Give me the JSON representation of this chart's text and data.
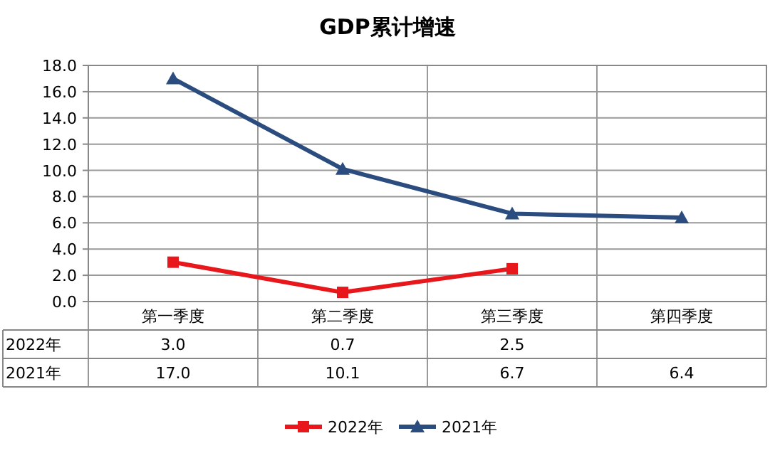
{
  "chart_data": {
    "type": "line",
    "title": "GDP累计增速",
    "categories": [
      "第一季度",
      "第二季度",
      "第三季度",
      "第四季度"
    ],
    "series": [
      {
        "name": "2022年",
        "color": "#e8171c",
        "marker": "square",
        "values": [
          3.0,
          0.7,
          2.5,
          null
        ],
        "value_labels": [
          "3.0",
          "0.7",
          "2.5",
          null
        ]
      },
      {
        "name": "2021年",
        "color": "#2b4c7e",
        "marker": "triangle",
        "values": [
          17.0,
          10.1,
          6.7,
          6.4
        ],
        "value_labels": [
          "17.0",
          "10.1",
          "6.7",
          "6.4"
        ]
      }
    ],
    "ylim": [
      0,
      18
    ],
    "yticks": [
      {
        "value": 0,
        "label": "0.0"
      },
      {
        "value": 2,
        "label": "2.0"
      },
      {
        "value": 4,
        "label": "4.0"
      },
      {
        "value": 6,
        "label": "6.0"
      },
      {
        "value": 8,
        "label": "8.0"
      },
      {
        "value": 10,
        "label": "10.0"
      },
      {
        "value": 12,
        "label": "12.0"
      },
      {
        "value": 14,
        "label": "14.0"
      },
      {
        "value": 16,
        "label": "16.0"
      },
      {
        "value": 18,
        "label": "18.0"
      }
    ],
    "grid": true,
    "legend": "bottom"
  }
}
